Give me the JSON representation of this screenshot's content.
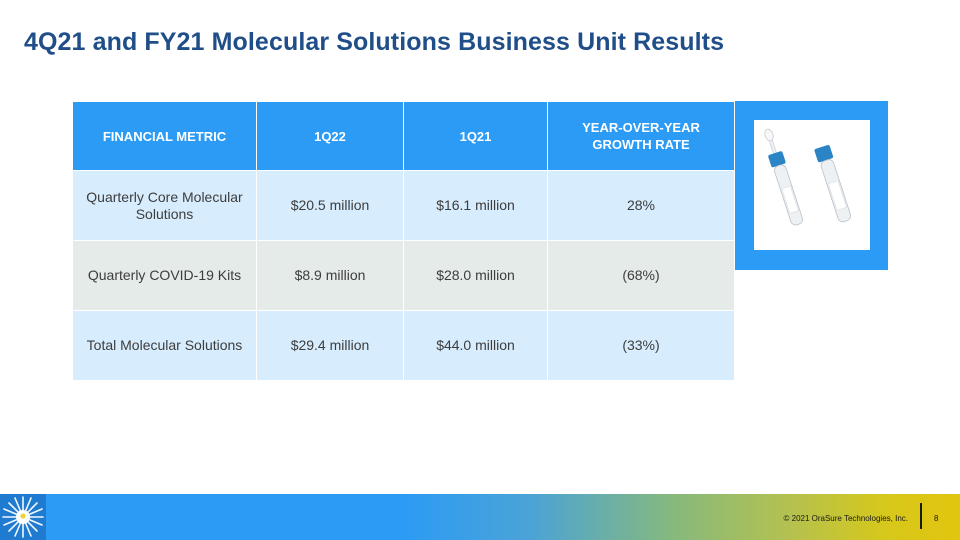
{
  "title": "4Q21 and FY21 Molecular Solutions Business Unit Results",
  "table": {
    "headers": [
      "FINANCIAL METRIC",
      "1Q22",
      "1Q21",
      "YEAR-OVER-YEAR GROWTH RATE"
    ],
    "rows": [
      [
        "Quarterly Core Molecular Solutions",
        "$20.5 million",
        "$16.1 million",
        "28%"
      ],
      [
        "Quarterly COVID-19 Kits",
        "$8.9 million",
        "$28.0 million",
        "(68%)"
      ],
      [
        "Total Molecular Solutions",
        "$29.4 million",
        "$44.0 million",
        "(33%)"
      ]
    ]
  },
  "footer": {
    "copyright": "© 2021 OraSure Technologies, Inc.",
    "page_number": "8"
  },
  "colors": {
    "title": "#1f4e89",
    "accent_blue": "#2c9bf5",
    "row_blue": "#d7ecfd",
    "row_gray": "#e5ebe8"
  },
  "icons": {
    "product": "sample-collection-tubes-icon",
    "logo": "sunburst-logo-icon"
  }
}
